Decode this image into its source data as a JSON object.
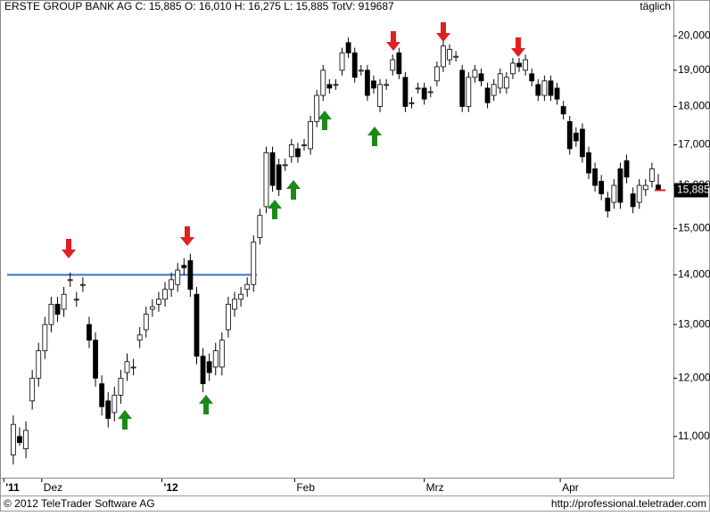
{
  "chart_data": {
    "type": "candlestick",
    "title": "ERSTE GROUP BANK AG C: 15,885 O: 16,010 H: 16,275 L: 15,885 TotV: 919687",
    "interval": "täglich",
    "log_scale": true,
    "ylim": [
      10330,
      21100
    ],
    "yticks": [
      {
        "value": 11000,
        "label": "11,000"
      },
      {
        "value": 12000,
        "label": "12,000"
      },
      {
        "value": 13000,
        "label": "13,000"
      },
      {
        "value": 14000,
        "label": "14,000"
      },
      {
        "value": 15000,
        "label": "15,000"
      },
      {
        "value": 16000,
        "label": "16,000"
      },
      {
        "value": 17000,
        "label": "17,000"
      },
      {
        "value": 18000,
        "label": "18,000"
      },
      {
        "value": 19000,
        "label": "19,000"
      },
      {
        "value": 20000,
        "label": "20,000"
      }
    ],
    "xlim": [
      -2.1,
      104.4
    ],
    "xticks": [
      {
        "value": -1.5,
        "label": "'11"
      },
      {
        "value": 4.5,
        "label": "Dez"
      },
      {
        "value": 23.5,
        "label": "'12"
      },
      {
        "value": 44.5,
        "label": "Feb"
      },
      {
        "value": 65,
        "label": "Mrz"
      },
      {
        "value": 86.5,
        "label": "Apr"
      }
    ],
    "open": [
      10700,
      11000,
      10800,
      11600,
      12000,
      12500,
      13000,
      13400,
      13300,
      13900,
      13500,
      13800,
      13000,
      12700,
      11900,
      11600,
      11400,
      11700,
      12100,
      12200,
      12700,
      12900,
      13300,
      13400,
      13500,
      13700,
      13800,
      14200,
      14300,
      13600,
      12400,
      12300,
      12200,
      12200,
      12900,
      13300,
      13500,
      13700,
      13800,
      14800,
      15500,
      16800,
      16500,
      16500,
      16700,
      16900,
      17000,
      16900,
      17600,
      18300,
      18600,
      18600,
      19000,
      19800,
      19500,
      19000,
      19000,
      18700,
      18000,
      18600,
      19000,
      19500,
      18800,
      18100,
      18500,
      18500,
      18400,
      18700,
      19100,
      19300,
      19400,
      19000,
      18000,
      18800,
      18900,
      18500,
      18300,
      18500,
      18500,
      18900,
      19200,
      19000,
      18900,
      18600,
      18300,
      18700,
      18500,
      18000,
      17600,
      17300,
      17400,
      16800,
      16400,
      16100,
      15700,
      15600,
      16400,
      16600,
      15800,
      15600,
      15900,
      16100,
      16010
    ],
    "high": [
      11350,
      11150,
      11250,
      12150,
      12650,
      13150,
      13550,
      13550,
      13750,
      14050,
      13650,
      13950,
      13150,
      12850,
      12050,
      11750,
      11850,
      12150,
      12450,
      12350,
      12950,
      13350,
      13500,
      13650,
      13850,
      14050,
      14250,
      14350,
      14450,
      13750,
      12550,
      12450,
      12650,
      12850,
      13550,
      13650,
      13750,
      13950,
      14850,
      15450,
      16950,
      16950,
      16650,
      16650,
      17150,
      17050,
      17150,
      17750,
      18450,
      19150,
      18750,
      18750,
      19650,
      19950,
      19650,
      19150,
      19150,
      18850,
      18750,
      18750,
      19450,
      19650,
      18950,
      18250,
      18650,
      18650,
      18550,
      19250,
      19850,
      19750,
      19550,
      19150,
      18950,
      19150,
      19050,
      18650,
      18750,
      19050,
      18950,
      19350,
      19350,
      19450,
      19050,
      18750,
      18850,
      18850,
      18650,
      18150,
      17750,
      17450,
      17550,
      16950,
      16550,
      16250,
      15850,
      16150,
      16550,
      16750,
      15950,
      16150,
      16150,
      16550,
      16275
    ],
    "low": [
      10550,
      10850,
      10650,
      11450,
      11850,
      12350,
      12850,
      13050,
      13150,
      13750,
      13350,
      13650,
      12550,
      11850,
      11350,
      11150,
      11250,
      11550,
      11950,
      12050,
      12550,
      12750,
      13150,
      13250,
      13350,
      13550,
      13650,
      14000,
      13550,
      12250,
      11750,
      11950,
      12050,
      12050,
      12750,
      13150,
      13350,
      13550,
      13650,
      14650,
      15350,
      15850,
      15750,
      16350,
      16550,
      16550,
      16850,
      16750,
      17450,
      18150,
      18350,
      18450,
      18850,
      19350,
      18650,
      18850,
      18150,
      18350,
      17850,
      18450,
      18850,
      18750,
      17850,
      17950,
      18350,
      18050,
      18250,
      18550,
      18950,
      19150,
      19250,
      17850,
      17850,
      18650,
      18550,
      17950,
      18150,
      18350,
      18350,
      18750,
      18950,
      18850,
      18550,
      18150,
      18150,
      18150,
      18050,
      17650,
      16750,
      16950,
      16550,
      16150,
      15850,
      15650,
      15250,
      15450,
      15450,
      16050,
      15350,
      15450,
      15750,
      15950,
      15885
    ],
    "close": [
      11200,
      10900,
      11100,
      12000,
      12500,
      13000,
      13400,
      13200,
      13600,
      13900,
      13500,
      13800,
      12700,
      12000,
      11500,
      11300,
      11700,
      12000,
      12300,
      12200,
      12800,
      13200,
      13350,
      13500,
      13700,
      13900,
      14100,
      14150,
      13700,
      12400,
      11900,
      12100,
      12500,
      12700,
      13400,
      13500,
      13600,
      13800,
      14700,
      15300,
      16800,
      16000,
      15900,
      16500,
      17000,
      16700,
      17000,
      17600,
      18300,
      19000,
      18500,
      18600,
      19500,
      19500,
      18800,
      19000,
      18300,
      18500,
      18600,
      18600,
      19300,
      18900,
      18000,
      18100,
      18500,
      18200,
      18400,
      19100,
      19700,
      19600,
      19400,
      18000,
      18800,
      19000,
      18700,
      18100,
      18600,
      18900,
      18800,
      19200,
      19100,
      19300,
      18700,
      18300,
      18700,
      18300,
      18200,
      17800,
      16900,
      17100,
      16700,
      16300,
      16000,
      15800,
      15400,
      16000,
      15600,
      16200,
      15500,
      16000,
      16000,
      16400,
      15885
    ],
    "last_label": "15,885",
    "hline": {
      "value": 14000,
      "color": "#3b6fc4"
    }
  },
  "footer": {
    "copyright": "© 2012 TeleTrader Software AG",
    "url": "http://professional.teletrader.com"
  }
}
